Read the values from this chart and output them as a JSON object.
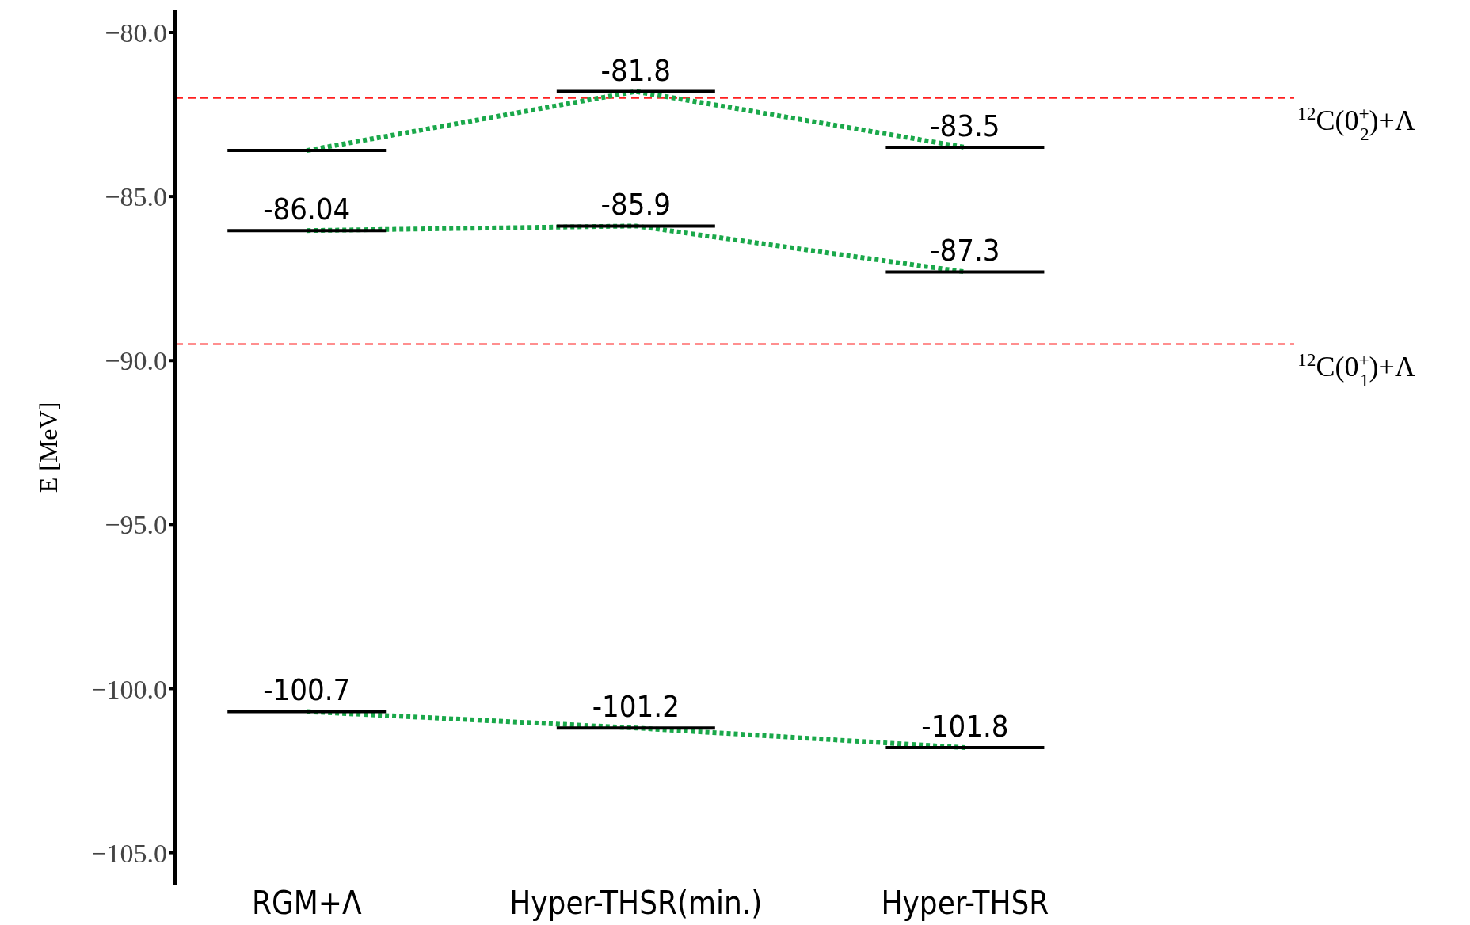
{
  "chart_data": {
    "type": "line",
    "categories": [
      "RGM+Λ",
      "Hyper-THSR(min.)",
      "Hyper-THSR"
    ],
    "ylabel": "E [MeV]",
    "ylim": [
      -106,
      -79.3
    ],
    "yticks": [
      {
        "value": -80,
        "label": "−80.0"
      },
      {
        "value": -85,
        "label": "−85.0"
      },
      {
        "value": -90,
        "label": "−90.0"
      },
      {
        "value": -95,
        "label": "−95.0"
      },
      {
        "value": -100,
        "label": "−100.0"
      },
      {
        "value": -105,
        "label": "−105.0"
      }
    ],
    "line_style": "dotted",
    "grid": false,
    "series": [
      {
        "color": "#1aa84a",
        "values": [
          -83.6,
          -81.8,
          -83.5
        ],
        "value_labels": [
          null,
          "-81.8",
          "-83.5"
        ]
      },
      {
        "color": "#1aa84a",
        "values": [
          -86.04,
          -85.9,
          -87.3
        ],
        "value_labels": [
          "-86.04",
          "-85.9",
          "-87.3"
        ]
      },
      {
        "color": "#1aa84a",
        "values": [
          -100.7,
          -101.2,
          -101.8
        ],
        "value_labels": [
          "-100.7",
          "-101.2",
          "-101.8"
        ]
      }
    ],
    "ref_lines": [
      {
        "axis": "y",
        "value": -82,
        "label": "$^{12}$C(0$^{+}$$_{2}$)+Λ",
        "color": "#ff2020",
        "line_style": "dashed"
      },
      {
        "axis": "y",
        "value": -89.5,
        "label": "$^{12}$C(0$^{+}$$_{1}$)+Λ",
        "color": "#ff2020",
        "line_style": "dashed"
      }
    ]
  }
}
